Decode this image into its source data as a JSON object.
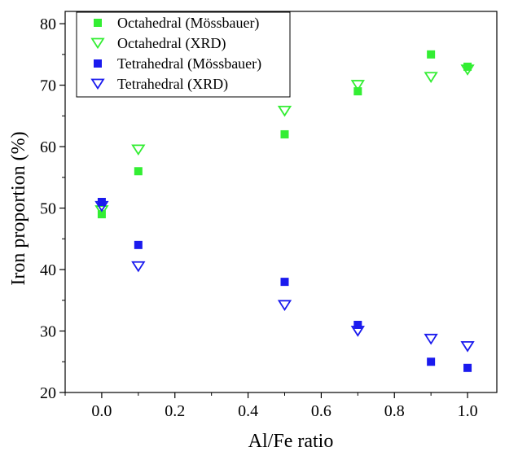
{
  "chart_data": {
    "type": "scatter",
    "xlabel": "Al/Fe ratio",
    "ylabel": "Iron proportion (%)",
    "xlim": [
      -0.1,
      1.08
    ],
    "ylim": [
      20,
      82
    ],
    "xticks": [
      0.0,
      0.2,
      0.4,
      0.6,
      0.8,
      1.0
    ],
    "xtick_labels": [
      "0.0",
      "0.2",
      "0.4",
      "0.6",
      "0.8",
      "1.0"
    ],
    "yticks": [
      20,
      30,
      40,
      50,
      60,
      70,
      80
    ],
    "ytick_labels": [
      "20",
      "30",
      "40",
      "50",
      "60",
      "70",
      "80"
    ],
    "grid": false,
    "legend_position": "top-left",
    "series": [
      {
        "name": "Octahedral (Mössbauer)",
        "marker": "square-filled",
        "color": "#33ee33",
        "x": [
          0.0,
          0.1,
          0.5,
          0.7,
          0.9,
          1.0
        ],
        "y": [
          49,
          56,
          62,
          69,
          75,
          73
        ]
      },
      {
        "name": "Octahedral (XRD)",
        "marker": "triangle-down-open",
        "color": "#33ee33",
        "x": [
          0.0,
          0.1,
          0.5,
          0.7,
          0.9,
          1.0
        ],
        "y": [
          49.6,
          59.5,
          65.8,
          70,
          71.3,
          72.5
        ]
      },
      {
        "name": "Tetrahedral (Mössbauer)",
        "marker": "square-filled",
        "color": "#1a1aee",
        "x": [
          0.0,
          0.1,
          0.5,
          0.7,
          0.9,
          1.0
        ],
        "y": [
          51,
          44,
          38,
          31,
          25,
          24
        ]
      },
      {
        "name": "Tetrahedral (XRD)",
        "marker": "triangle-down-open",
        "color": "#1a1aee",
        "x": [
          0.0,
          0.1,
          0.5,
          0.7,
          0.9,
          1.0
        ],
        "y": [
          50.3,
          40.5,
          34.2,
          30,
          28.7,
          27.5
        ]
      }
    ]
  }
}
